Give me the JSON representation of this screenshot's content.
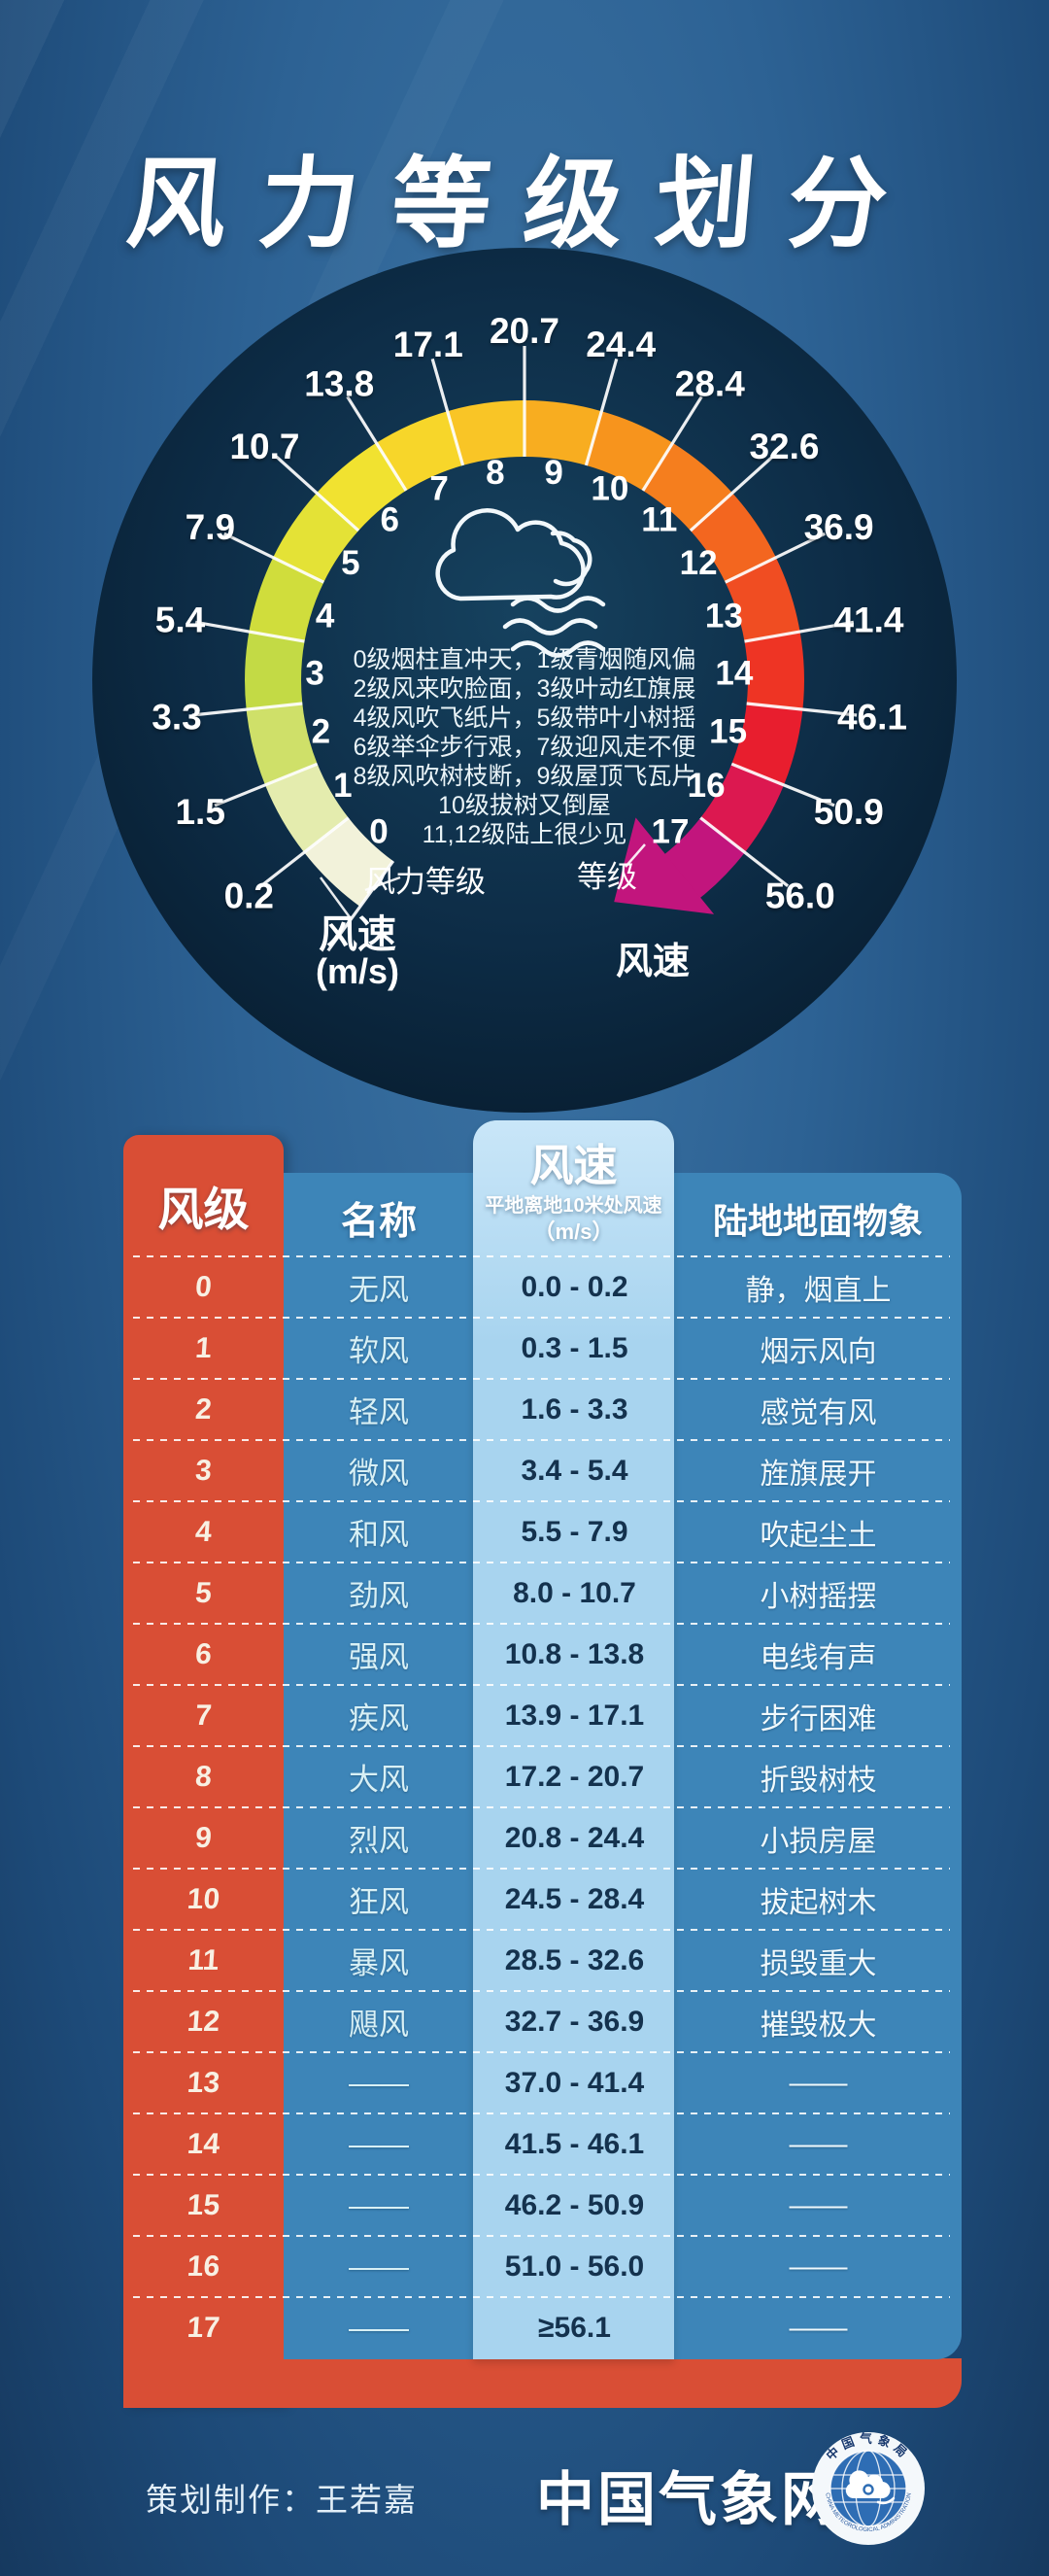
{
  "title": "风力等级划分",
  "colors": {
    "bg1": "#3c74a4",
    "bg2": "#2d6294",
    "bg3": "#1d4a78",
    "red": "#d94e35",
    "panel": "#3d85b8",
    "lightcol": "#a8d4ef",
    "lightcol2": "#c9e6f8",
    "speedtext": "#14324e",
    "magenta": "#c2157d",
    "gauge1": "#16425f",
    "gauge2": "#0b2740"
  },
  "gauge": {
    "levels": [
      "0",
      "1",
      "2",
      "3",
      "4",
      "5",
      "6",
      "7",
      "8",
      "9",
      "10",
      "11",
      "12",
      "13",
      "14",
      "15",
      "16",
      "17"
    ],
    "speeds": [
      "0.2",
      "1.5",
      "3.3",
      "5.4",
      "7.9",
      "10.7",
      "13.8",
      "17.1",
      "20.7",
      "24.4",
      "28.4",
      "32.6",
      "36.9",
      "41.4",
      "46.1",
      "50.9",
      "56.0"
    ],
    "segment_colors": [
      "#f2f2da",
      "#e4ecae",
      "#cfe069",
      "#c3da45",
      "#d0dd3c",
      "#e4e236",
      "#f1e230",
      "#f7d62a",
      "#f9c526",
      "#f8ad20",
      "#f7941d",
      "#f57e1e",
      "#f3661f",
      "#f04d22",
      "#ee3424",
      "#e81e2e",
      "#dc1850",
      "#c2157d"
    ],
    "rhyme_lines": [
      "0级烟柱直冲天，1级青烟随风偏",
      "2级风来吹脸面，3级叶动红旗展",
      "4级风吹飞纸片，5级带叶小树摇",
      "6级举伞步行艰，7级迎风走不便",
      "8级风吹树枝断，9级屋顶飞瓦片",
      "10级拔树又倒屋",
      "11,12级陆上很少见"
    ],
    "inner_scale_label": "风力等级",
    "outer_scale_label": "风速",
    "outer_scale_unit": "(m/s)",
    "grade_pointer_label": "等级",
    "speed_pointer_label": "风速"
  },
  "table": {
    "headers": {
      "level": "风级",
      "name": "名称",
      "speed": "风速",
      "speed_sub": "平地离地10米处风速",
      "speed_unit": "（m/s）",
      "phenomena": "陆地地面物象"
    },
    "rows": [
      {
        "level": "0",
        "name": "无风",
        "speed": "0.0 - 0.2",
        "phenomena": "静，烟直上"
      },
      {
        "level": "1",
        "name": "软风",
        "speed": "0.3 - 1.5",
        "phenomena": "烟示风向"
      },
      {
        "level": "2",
        "name": "轻风",
        "speed": "1.6 - 3.3",
        "phenomena": "感觉有风"
      },
      {
        "level": "3",
        "name": "微风",
        "speed": "3.4 - 5.4",
        "phenomena": "旌旗展开"
      },
      {
        "level": "4",
        "name": "和风",
        "speed": "5.5 - 7.9",
        "phenomena": "吹起尘土"
      },
      {
        "level": "5",
        "name": "劲风",
        "speed": "8.0 - 10.7",
        "phenomena": "小树摇摆"
      },
      {
        "level": "6",
        "name": "强风",
        "speed": "10.8 - 13.8",
        "phenomena": "电线有声"
      },
      {
        "level": "7",
        "name": "疾风",
        "speed": "13.9 - 17.1",
        "phenomena": "步行困难"
      },
      {
        "level": "8",
        "name": "大风",
        "speed": "17.2 - 20.7",
        "phenomena": "折毁树枝"
      },
      {
        "level": "9",
        "name": "烈风",
        "speed": "20.8 - 24.4",
        "phenomena": "小损房屋"
      },
      {
        "level": "10",
        "name": "狂风",
        "speed": "24.5 - 28.4",
        "phenomena": "拔起树木"
      },
      {
        "level": "11",
        "name": "暴风",
        "speed": "28.5 - 32.6",
        "phenomena": "损毁重大"
      },
      {
        "level": "12",
        "name": "飓风",
        "speed": "32.7 - 36.9",
        "phenomena": "摧毁极大"
      },
      {
        "level": "13",
        "name": "——",
        "speed": "37.0 - 41.4",
        "phenomena": "——"
      },
      {
        "level": "14",
        "name": "——",
        "speed": "41.5 - 46.1",
        "phenomena": "——"
      },
      {
        "level": "15",
        "name": "——",
        "speed": "46.2 - 50.9",
        "phenomena": "——"
      },
      {
        "level": "16",
        "name": "——",
        "speed": "51.0 - 56.0",
        "phenomena": "——"
      },
      {
        "level": "17",
        "name": "——",
        "speed": "≥56.1",
        "phenomena": "——"
      }
    ]
  },
  "footer": {
    "credit": "策划制作：王若嘉",
    "site": "中国气象网",
    "logo_ring_top": "中国气象局",
    "logo_ring_bottom": "CHINA METEOROLOGICAL ADMINISTRATION"
  }
}
